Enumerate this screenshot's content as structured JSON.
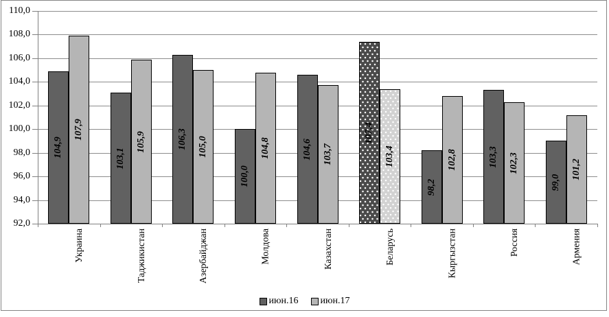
{
  "figure": {
    "background": "#ffffff",
    "border_color": "#848484"
  },
  "chart_data": {
    "type": "bar",
    "title": "",
    "xlabel": "",
    "ylabel": "",
    "categories": [
      "Украина",
      "Таджикистан",
      "Азербайджан",
      "Молдова",
      "Казахстан",
      "Беларусь",
      "Кыргызстан",
      "Россия",
      "Армения"
    ],
    "series": [
      {
        "name": "июн.16",
        "color": "#616161",
        "highlight_color": "#4a4a4a",
        "values": [
          104.9,
          103.1,
          106.3,
          100.0,
          104.6,
          107.4,
          98.2,
          103.3,
          99.0
        ],
        "labels": [
          "104,9",
          "103,1",
          "106,3",
          "100,0",
          "104,6",
          "107,4",
          "98,2",
          "103,3",
          "99,0"
        ]
      },
      {
        "name": "июн.17",
        "color": "#b5b5b5",
        "highlight_color": "#d2d2d2",
        "values": [
          107.9,
          105.9,
          105.0,
          104.8,
          103.7,
          103.4,
          102.8,
          102.3,
          101.2
        ],
        "labels": [
          "107,9",
          "105,9",
          "105,0",
          "104,8",
          "103,7",
          "103,4",
          "102,8",
          "102,3",
          "101,2"
        ]
      }
    ],
    "highlighted_category": "Беларусь",
    "highlight_pattern": "white-dots",
    "data_labels_position": "center-rotated",
    "decimal_separator": ",",
    "ylim": [
      92,
      110
    ],
    "y_tick_step": 2,
    "y_tick_labels": [
      "110,0",
      "108,0",
      "106,0",
      "104,0",
      "102,0",
      "100,0",
      "98,0",
      "96,0",
      "94,0",
      "92,0"
    ],
    "grid": true,
    "gridline_color": "#8c8c8c",
    "axis_color": "#808080",
    "bar_border_color": "#000000",
    "legend_position": "bottom"
  }
}
